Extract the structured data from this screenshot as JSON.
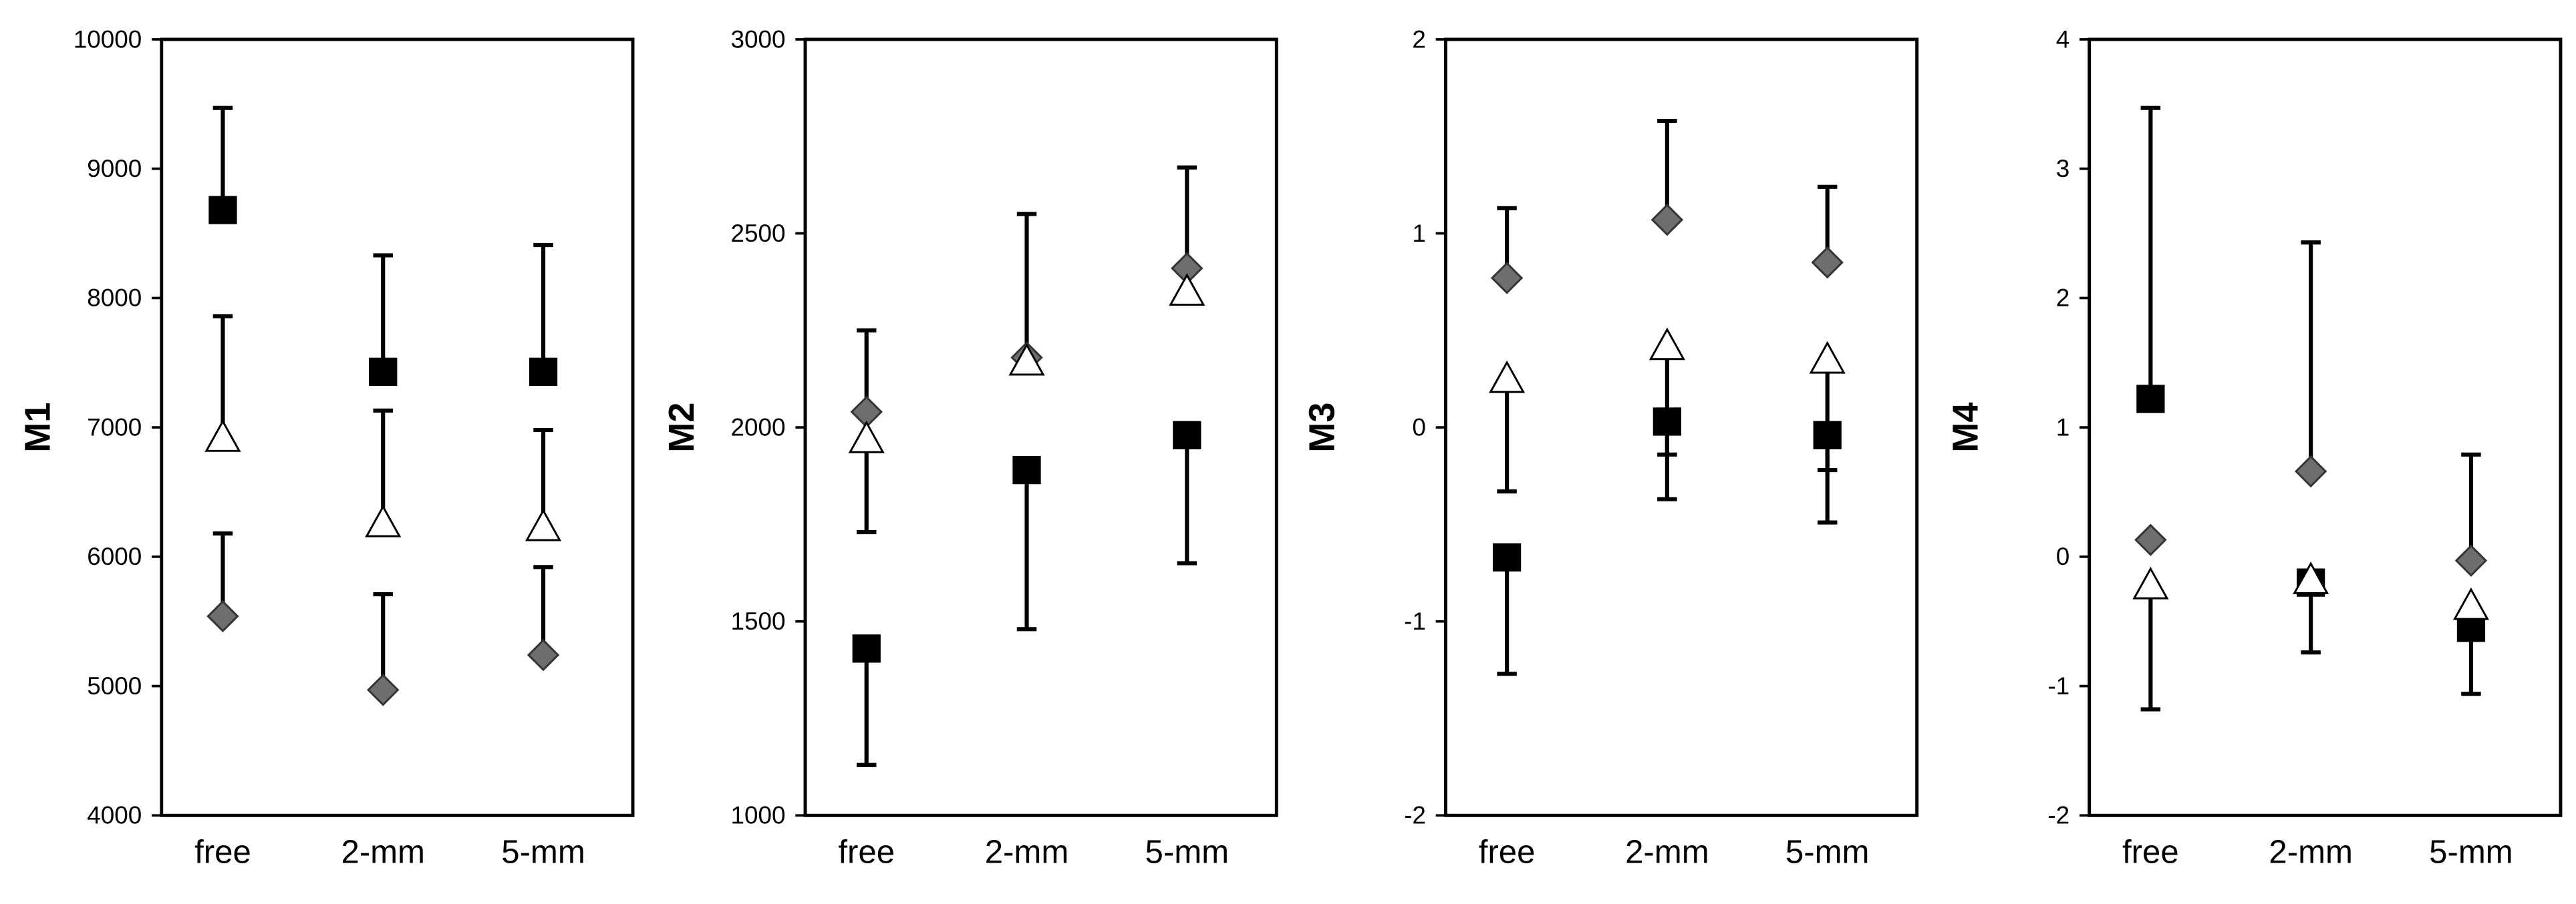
{
  "chart_data": [
    {
      "type": "point",
      "ylabel": "M1",
      "categories": [
        "free",
        "2-mm",
        "5-mm"
      ],
      "ylim": [
        4000,
        10000
      ],
      "yticks": [
        4000,
        5000,
        6000,
        7000,
        8000,
        9000,
        10000
      ],
      "series": [
        {
          "marker": "diamond",
          "color": "#6e6e6e",
          "values": [
            5540,
            4970,
            5240
          ],
          "errors": [
            640,
            740,
            680
          ],
          "error_side": [
            "up",
            "up",
            "up"
          ]
        },
        {
          "marker": "square",
          "color": "#000000",
          "values": [
            8680,
            7430,
            7430
          ],
          "errors": [
            790,
            900,
            980
          ],
          "error_side": [
            "up",
            "up",
            "up"
          ]
        },
        {
          "marker": "triangle",
          "color": "#ffffff",
          "values": [
            6920,
            6260,
            6230
          ],
          "errors": [
            940,
            870,
            750
          ],
          "error_side": [
            "up",
            "up",
            "up"
          ]
        }
      ]
    },
    {
      "type": "point",
      "ylabel": "M2",
      "categories": [
        "free",
        "2-mm",
        "5-mm"
      ],
      "ylim": [
        1000,
        3000
      ],
      "yticks": [
        1000,
        1500,
        2000,
        2500,
        3000
      ],
      "series": [
        {
          "marker": "diamond",
          "color": "#6e6e6e",
          "values": [
            2040,
            2180,
            2410
          ],
          "errors": [
            210,
            null,
            260
          ],
          "error_side": [
            "up",
            "up",
            "up"
          ]
        },
        {
          "marker": "square",
          "color": "#000000",
          "values": [
            1430,
            1890,
            1980
          ],
          "errors": [
            300,
            410,
            330
          ],
          "error_side": [
            "down",
            "down",
            "down"
          ]
        },
        {
          "marker": "triangle",
          "color": "#ffffff",
          "values": [
            1970,
            2170,
            2350
          ],
          "errors": [
            240,
            380,
            null
          ],
          "error_side": [
            "down",
            "up",
            "up"
          ]
        }
      ]
    },
    {
      "type": "point",
      "ylabel": "M3",
      "categories": [
        "free",
        "2-mm",
        "5-mm"
      ],
      "ylim": [
        -2,
        2
      ],
      "yticks": [
        -2,
        -1,
        0,
        1,
        2
      ],
      "series": [
        {
          "marker": "diamond",
          "color": "#6e6e6e",
          "values": [
            0.77,
            1.07,
            0.85
          ],
          "errors": [
            0.36,
            0.51,
            0.39
          ],
          "error_side": [
            "up",
            "up",
            "up"
          ]
        },
        {
          "marker": "square",
          "color": "#000000",
          "values": [
            -0.67,
            0.03,
            -0.04
          ],
          "errors": [
            0.6,
            0.4,
            0.45
          ],
          "error_side": [
            "down",
            "down",
            "down"
          ]
        },
        {
          "marker": "triangle",
          "color": "#ffffff",
          "values": [
            0.25,
            0.42,
            0.35
          ],
          "errors": [
            0.58,
            0.56,
            0.57
          ],
          "error_side": [
            "down",
            "down",
            "down"
          ]
        }
      ]
    },
    {
      "type": "point",
      "ylabel": "M4",
      "categories": [
        "free",
        "2-mm",
        "5-mm"
      ],
      "ylim": [
        -2,
        4
      ],
      "yticks": [
        -2,
        -1,
        0,
        1,
        2,
        3,
        4
      ],
      "series": [
        {
          "marker": "diamond",
          "color": "#6e6e6e",
          "values": [
            0.13,
            0.66,
            -0.03
          ],
          "errors": [
            null,
            1.77,
            0.82
          ],
          "error_side": [
            "up",
            "up",
            "up"
          ]
        },
        {
          "marker": "square",
          "color": "#000000",
          "values": [
            1.22,
            -0.2,
            -0.55
          ],
          "errors": [
            2.25,
            0.54,
            0.51
          ],
          "error_side": [
            "up",
            "down",
            "down"
          ]
        },
        {
          "marker": "triangle",
          "color": "#ffffff",
          "values": [
            -0.22,
            -0.18,
            -0.38
          ],
          "errors": [
            0.96,
            null,
            null
          ],
          "error_side": [
            "down",
            "down",
            "down"
          ]
        }
      ]
    }
  ]
}
